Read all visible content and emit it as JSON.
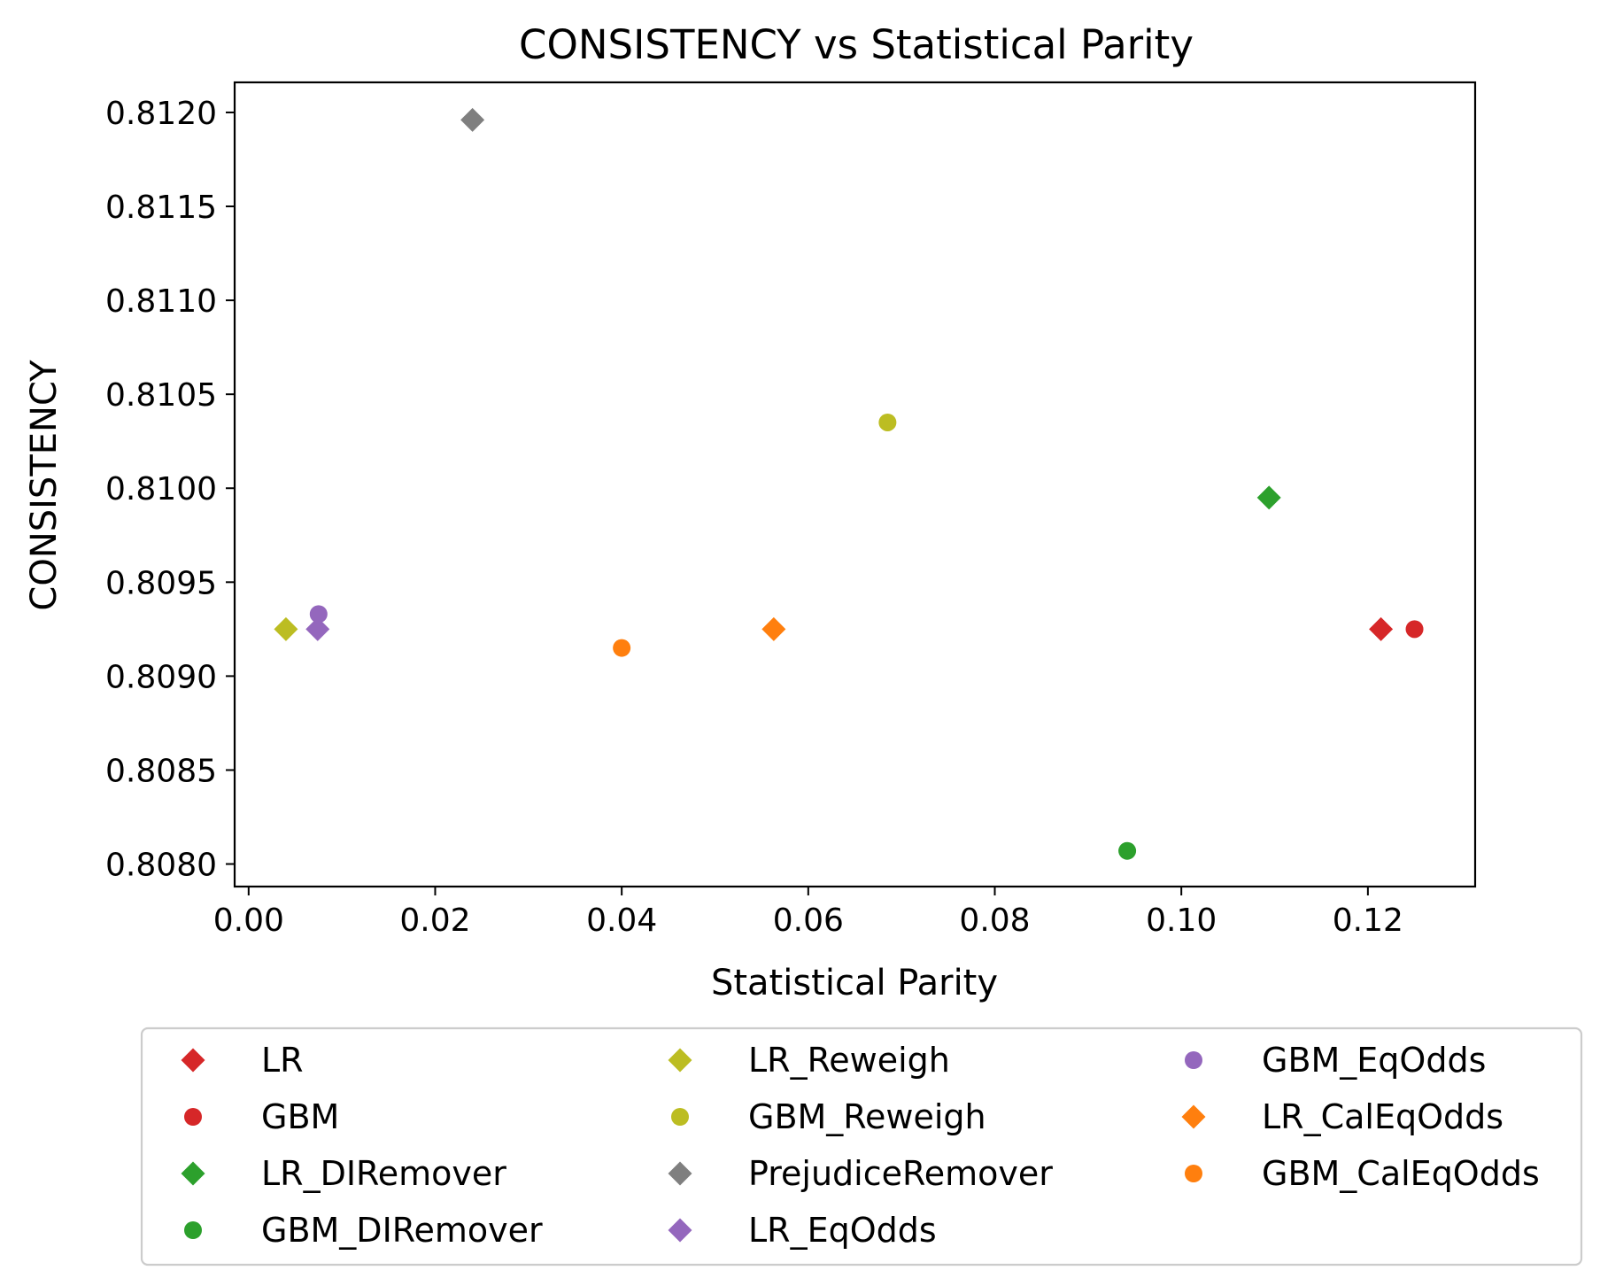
{
  "chart_data": {
    "type": "scatter",
    "title": "CONSISTENCY vs Statistical Parity",
    "xlabel": "Statistical Parity",
    "ylabel": "CONSISTENCY",
    "xlim": [
      -0.0015,
      0.1315
    ],
    "ylim": [
      0.80788,
      0.81216
    ],
    "xticks": [
      0.0,
      0.02,
      0.04,
      0.06,
      0.08,
      0.1,
      0.12
    ],
    "xtick_labels": [
      "0.00",
      "0.02",
      "0.04",
      "0.06",
      "0.08",
      "0.10",
      "0.12"
    ],
    "yticks": [
      0.808,
      0.8085,
      0.809,
      0.8095,
      0.81,
      0.8105,
      0.811,
      0.8115,
      0.812
    ],
    "ytick_labels": [
      "0.8080",
      "0.8085",
      "0.8090",
      "0.8095",
      "0.8100",
      "0.8105",
      "0.8110",
      "0.8115",
      "0.8120"
    ],
    "grid": false,
    "legend_position": "below",
    "series": [
      {
        "name": "LR",
        "marker": "diamond",
        "color": "#d62728",
        "x": 0.1214,
        "y": 0.80925
      },
      {
        "name": "GBM",
        "marker": "circle",
        "color": "#d62728",
        "x": 0.125,
        "y": 0.80925
      },
      {
        "name": "LR_DIRemover",
        "marker": "diamond",
        "color": "#2ca02c",
        "x": 0.1094,
        "y": 0.80995
      },
      {
        "name": "GBM_DIRemover",
        "marker": "circle",
        "color": "#2ca02c",
        "x": 0.0942,
        "y": 0.80807
      },
      {
        "name": "LR_Reweigh",
        "marker": "diamond",
        "color": "#bcbd22",
        "x": 0.004,
        "y": 0.80925
      },
      {
        "name": "GBM_Reweigh",
        "marker": "circle",
        "color": "#bcbd22",
        "x": 0.0685,
        "y": 0.81035
      },
      {
        "name": "PrejudiceRemover",
        "marker": "diamond",
        "color": "#7f7f7f",
        "x": 0.024,
        "y": 0.81196
      },
      {
        "name": "LR_EqOdds",
        "marker": "diamond",
        "color": "#9467bd",
        "x": 0.0074,
        "y": 0.80925
      },
      {
        "name": "GBM_EqOdds",
        "marker": "circle",
        "color": "#9467bd",
        "x": 0.0075,
        "y": 0.80933
      },
      {
        "name": "LR_CalEqOdds",
        "marker": "diamond",
        "color": "#ff7f0e",
        "x": 0.0563,
        "y": 0.80925
      },
      {
        "name": "GBM_CalEqOdds",
        "marker": "circle",
        "color": "#ff7f0e",
        "x": 0.04,
        "y": 0.80915
      }
    ]
  }
}
